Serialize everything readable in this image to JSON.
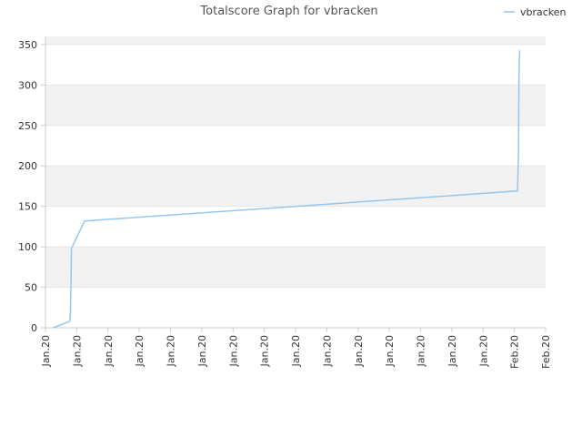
{
  "chart_data": {
    "type": "line",
    "title": "Totalscore Graph for vbracken",
    "xlabel": "",
    "ylabel": "",
    "ylim": [
      0,
      360
    ],
    "yticks": [
      0,
      50,
      100,
      150,
      200,
      250,
      300,
      350
    ],
    "xtick_labels": [
      "Jan.20",
      "Jan.20",
      "Jan.20",
      "Jan.20",
      "Jan.20",
      "Jan.20",
      "Jan.20",
      "Jan.20",
      "Jan.20",
      "Jan.20",
      "Jan.20",
      "Jan.20",
      "Jan.20",
      "Jan.20",
      "Jan.20",
      "Feb.20",
      "Feb.20"
    ],
    "legend": {
      "position": "top-right",
      "entries": [
        "vbracken"
      ]
    },
    "grid": true,
    "series": [
      {
        "name": "vbracken",
        "color": "#95c7ee",
        "x": [
          0.25,
          0.78,
          0.8,
          0.81,
          0.82,
          0.83,
          1.25,
          15.1,
          15.12,
          15.13,
          15.14,
          15.15,
          15.17
        ],
        "values": [
          0,
          8,
          20,
          40,
          60,
          98,
          132,
          169,
          200,
          210,
          260,
          320,
          343
        ]
      }
    ]
  },
  "colors": {
    "band": "#f2f2f2",
    "grid": "#e6e6e6",
    "axis": "#cccccc",
    "line": "#95c7ee"
  }
}
